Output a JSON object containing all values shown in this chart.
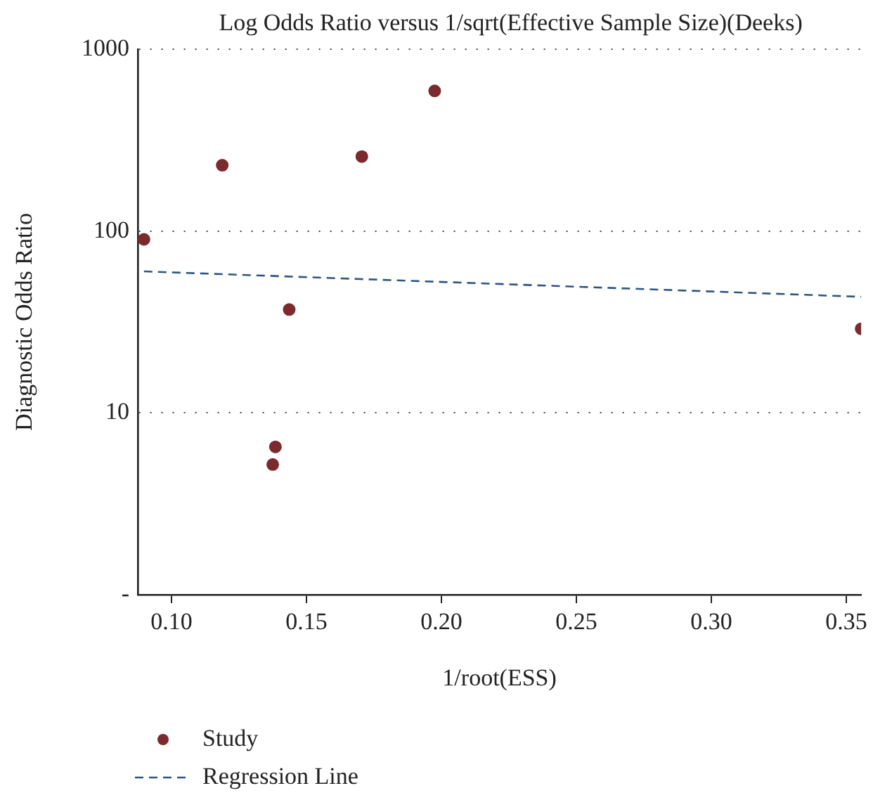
{
  "chart_data": {
    "type": "scatter",
    "title": "Log Odds Ratio versus 1/sqrt(Effective Sample Size)(Deeks)",
    "xlabel": "1/root(ESS)",
    "ylabel": "Diagnostic Odds Ratio",
    "series": [
      {
        "name": "Study",
        "color": "#7b2a2e",
        "marker": "circle",
        "x": [
          0.0898,
          0.1188,
          0.1375,
          0.1385,
          0.1436,
          0.1705,
          0.1975,
          0.3555
        ],
        "values": [
          90,
          230,
          5.2,
          6.5,
          37,
          257,
          590,
          29
        ]
      },
      {
        "name": "Regression Line",
        "type": "line",
        "color": "#2e5680",
        "marker": "none",
        "line_style": "dashed",
        "x": [
          0.0898,
          0.3555
        ],
        "values": [
          60,
          43.5
        ]
      }
    ],
    "xlim": [
      0.0875,
      0.3555
    ],
    "xticks": [
      {
        "value": 0.1,
        "label": "0.10"
      },
      {
        "value": 0.15,
        "label": "0.15"
      },
      {
        "value": 0.2,
        "label": "0.20"
      },
      {
        "value": 0.25,
        "label": "0.25"
      },
      {
        "value": 0.3,
        "label": "0.30"
      },
      {
        "value": 0.35,
        "label": "0.35"
      }
    ],
    "ylim": [
      1,
      1000
    ],
    "yticks": [
      {
        "value": 1,
        "label": "-"
      },
      10,
      100,
      1000
    ],
    "log": "y",
    "grid": "y",
    "legend": "bottom left"
  }
}
